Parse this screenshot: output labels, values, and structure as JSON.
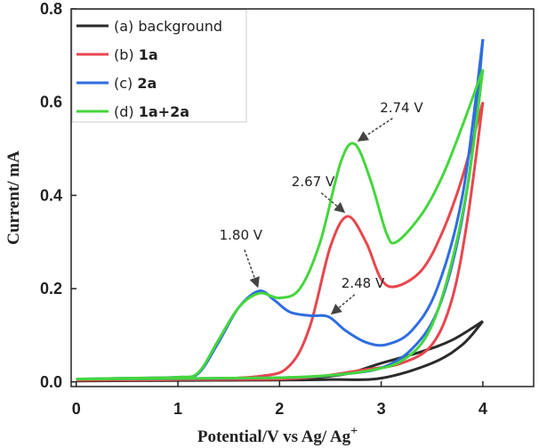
{
  "chart_data": {
    "type": "line",
    "title": "",
    "xlabel": "Potential/V vs Ag/ Ag",
    "xlabel_sup": "+",
    "ylabel": "Current/ mA",
    "xlim": [
      -0.05,
      4.5
    ],
    "ylim": [
      -0.01,
      0.8
    ],
    "xticks": [
      0,
      1,
      2,
      3,
      4
    ],
    "xtick_labels": [
      "0",
      "1",
      "2",
      "3",
      "4"
    ],
    "yticks": [
      0.0,
      0.2,
      0.4,
      0.6,
      0.8
    ],
    "ytick_labels": [
      "0.0",
      "0.2",
      "0.4",
      "0.6",
      "0.8"
    ],
    "legend_position": "top-left",
    "series": [
      {
        "key": "background",
        "name_prefix": "(a) ",
        "name_main": "background",
        "color": "#2b2b2b",
        "forward": [
          [
            0,
            0.002
          ],
          [
            1,
            0.003
          ],
          [
            2,
            0.004
          ],
          [
            2.5,
            0.005
          ],
          [
            3,
            0.008
          ],
          [
            3.5,
            0.04
          ],
          [
            3.8,
            0.08
          ],
          [
            4,
            0.13
          ]
        ],
        "reverse": [
          [
            4,
            0.13
          ],
          [
            3.7,
            0.09
          ],
          [
            3.4,
            0.065
          ],
          [
            3.0,
            0.04
          ],
          [
            2.6,
            0.015
          ],
          [
            2.0,
            0.006
          ],
          [
            1.0,
            0.004
          ],
          [
            0.5,
            0.004
          ],
          [
            0,
            0.003
          ]
        ]
      },
      {
        "key": "1a",
        "name_prefix": "(b) ",
        "name_main": "1a",
        "color": "#e8464e",
        "forward": [
          [
            0,
            0.004
          ],
          [
            1.0,
            0.005
          ],
          [
            1.8,
            0.012
          ],
          [
            2.1,
            0.035
          ],
          [
            2.3,
            0.12
          ],
          [
            2.5,
            0.29
          ],
          [
            2.67,
            0.355
          ],
          [
            2.85,
            0.3
          ],
          [
            3.0,
            0.22
          ],
          [
            3.15,
            0.205
          ],
          [
            3.4,
            0.24
          ],
          [
            3.6,
            0.32
          ],
          [
            3.8,
            0.44
          ],
          [
            4.0,
            0.6
          ]
        ],
        "reverse": [
          [
            4.0,
            0.6
          ],
          [
            3.85,
            0.35
          ],
          [
            3.7,
            0.18
          ],
          [
            3.5,
            0.08
          ],
          [
            3.2,
            0.04
          ],
          [
            2.8,
            0.025
          ],
          [
            2.4,
            0.012
          ],
          [
            2.0,
            0.006
          ],
          [
            1.0,
            0.005
          ],
          [
            0,
            0.004
          ]
        ]
      },
      {
        "key": "2a",
        "name_prefix": "(c) ",
        "name_main": "2a",
        "color": "#2f6de0",
        "forward": [
          [
            0,
            0.006
          ],
          [
            0.5,
            0.008
          ],
          [
            1.0,
            0.01
          ],
          [
            1.2,
            0.018
          ],
          [
            1.4,
            0.085
          ],
          [
            1.6,
            0.16
          ],
          [
            1.8,
            0.195
          ],
          [
            1.95,
            0.175
          ],
          [
            2.1,
            0.15
          ],
          [
            2.3,
            0.142
          ],
          [
            2.48,
            0.14
          ],
          [
            2.65,
            0.11
          ],
          [
            2.85,
            0.085
          ],
          [
            3.05,
            0.08
          ],
          [
            3.3,
            0.11
          ],
          [
            3.55,
            0.2
          ],
          [
            3.8,
            0.4
          ],
          [
            4.0,
            0.735
          ]
        ],
        "reverse": [
          [
            4.0,
            0.735
          ],
          [
            3.9,
            0.5
          ],
          [
            3.75,
            0.3
          ],
          [
            3.55,
            0.15
          ],
          [
            3.3,
            0.07
          ],
          [
            3.0,
            0.03
          ],
          [
            2.6,
            0.016
          ],
          [
            2.2,
            0.01
          ],
          [
            1.6,
            0.008
          ],
          [
            1.0,
            0.007
          ],
          [
            0,
            0.006
          ]
        ]
      },
      {
        "key": "1a2a",
        "name_prefix": "(d) ",
        "name_main": "1a+2a",
        "color": "#45d63d",
        "forward": [
          [
            0,
            0.006
          ],
          [
            0.5,
            0.008
          ],
          [
            1.0,
            0.01
          ],
          [
            1.2,
            0.02
          ],
          [
            1.4,
            0.09
          ],
          [
            1.6,
            0.16
          ],
          [
            1.8,
            0.19
          ],
          [
            2.0,
            0.18
          ],
          [
            2.2,
            0.2
          ],
          [
            2.4,
            0.3
          ],
          [
            2.6,
            0.47
          ],
          [
            2.74,
            0.51
          ],
          [
            2.9,
            0.43
          ],
          [
            3.05,
            0.32
          ],
          [
            3.15,
            0.3
          ],
          [
            3.4,
            0.36
          ],
          [
            3.6,
            0.44
          ],
          [
            3.8,
            0.55
          ],
          [
            4.0,
            0.67
          ]
        ],
        "reverse": [
          [
            4.0,
            0.67
          ],
          [
            3.85,
            0.42
          ],
          [
            3.65,
            0.22
          ],
          [
            3.45,
            0.1
          ],
          [
            3.2,
            0.045
          ],
          [
            2.9,
            0.025
          ],
          [
            2.5,
            0.014
          ],
          [
            2.0,
            0.009
          ],
          [
            1.4,
            0.008
          ],
          [
            0,
            0.006
          ]
        ]
      }
    ],
    "annotations": [
      {
        "text": "1.80 V",
        "point": [
          1.8,
          0.195
        ],
        "label_at": [
          1.62,
          0.305
        ]
      },
      {
        "text": "2.48 V",
        "point": [
          2.48,
          0.14
        ],
        "label_at": [
          2.82,
          0.202
        ]
      },
      {
        "text": "2.67 V",
        "point": [
          2.67,
          0.358
        ],
        "label_at": [
          2.33,
          0.42
        ]
      },
      {
        "text": "2.74 V",
        "point": [
          2.74,
          0.512
        ],
        "label_at": [
          3.2,
          0.578
        ]
      }
    ]
  }
}
